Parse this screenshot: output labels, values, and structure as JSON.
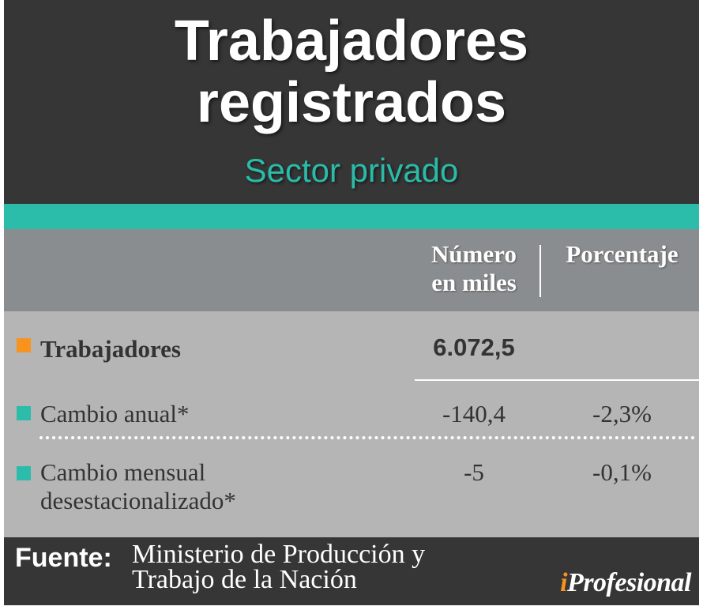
{
  "header": {
    "title_line1": "Trabajadores",
    "title_line2": "registrados",
    "subtitle": "Sector privado"
  },
  "columns": {
    "number_line1": "Número",
    "number_line2": "en miles",
    "percent": "Porcentaje"
  },
  "rows": [
    {
      "label": "Trabajadores",
      "number": "6.072,5",
      "percent": "",
      "bullet_color": "#f7931e"
    },
    {
      "label": "Cambio anual*",
      "number": "-140,4",
      "percent": "-2,3%",
      "bullet_color": "#2bbcaa"
    },
    {
      "label_line1": "Cambio mensual",
      "label_line2": "desestacionalizado*",
      "number": "-5",
      "percent": "-0,1%",
      "bullet_color": "#2bbcaa"
    }
  ],
  "footer": {
    "source_label": "Fuente:",
    "source_line1": "Ministerio de Producción y",
    "source_line2": "Trabajo de la Nación",
    "brand_i": "i",
    "brand_rest": "Profesional"
  },
  "colors": {
    "dark": "#363636",
    "teal": "#2bbcaa",
    "orange": "#f7931e",
    "header_gray": "#8a8d8f",
    "body_gray": "#b5b5b5"
  }
}
